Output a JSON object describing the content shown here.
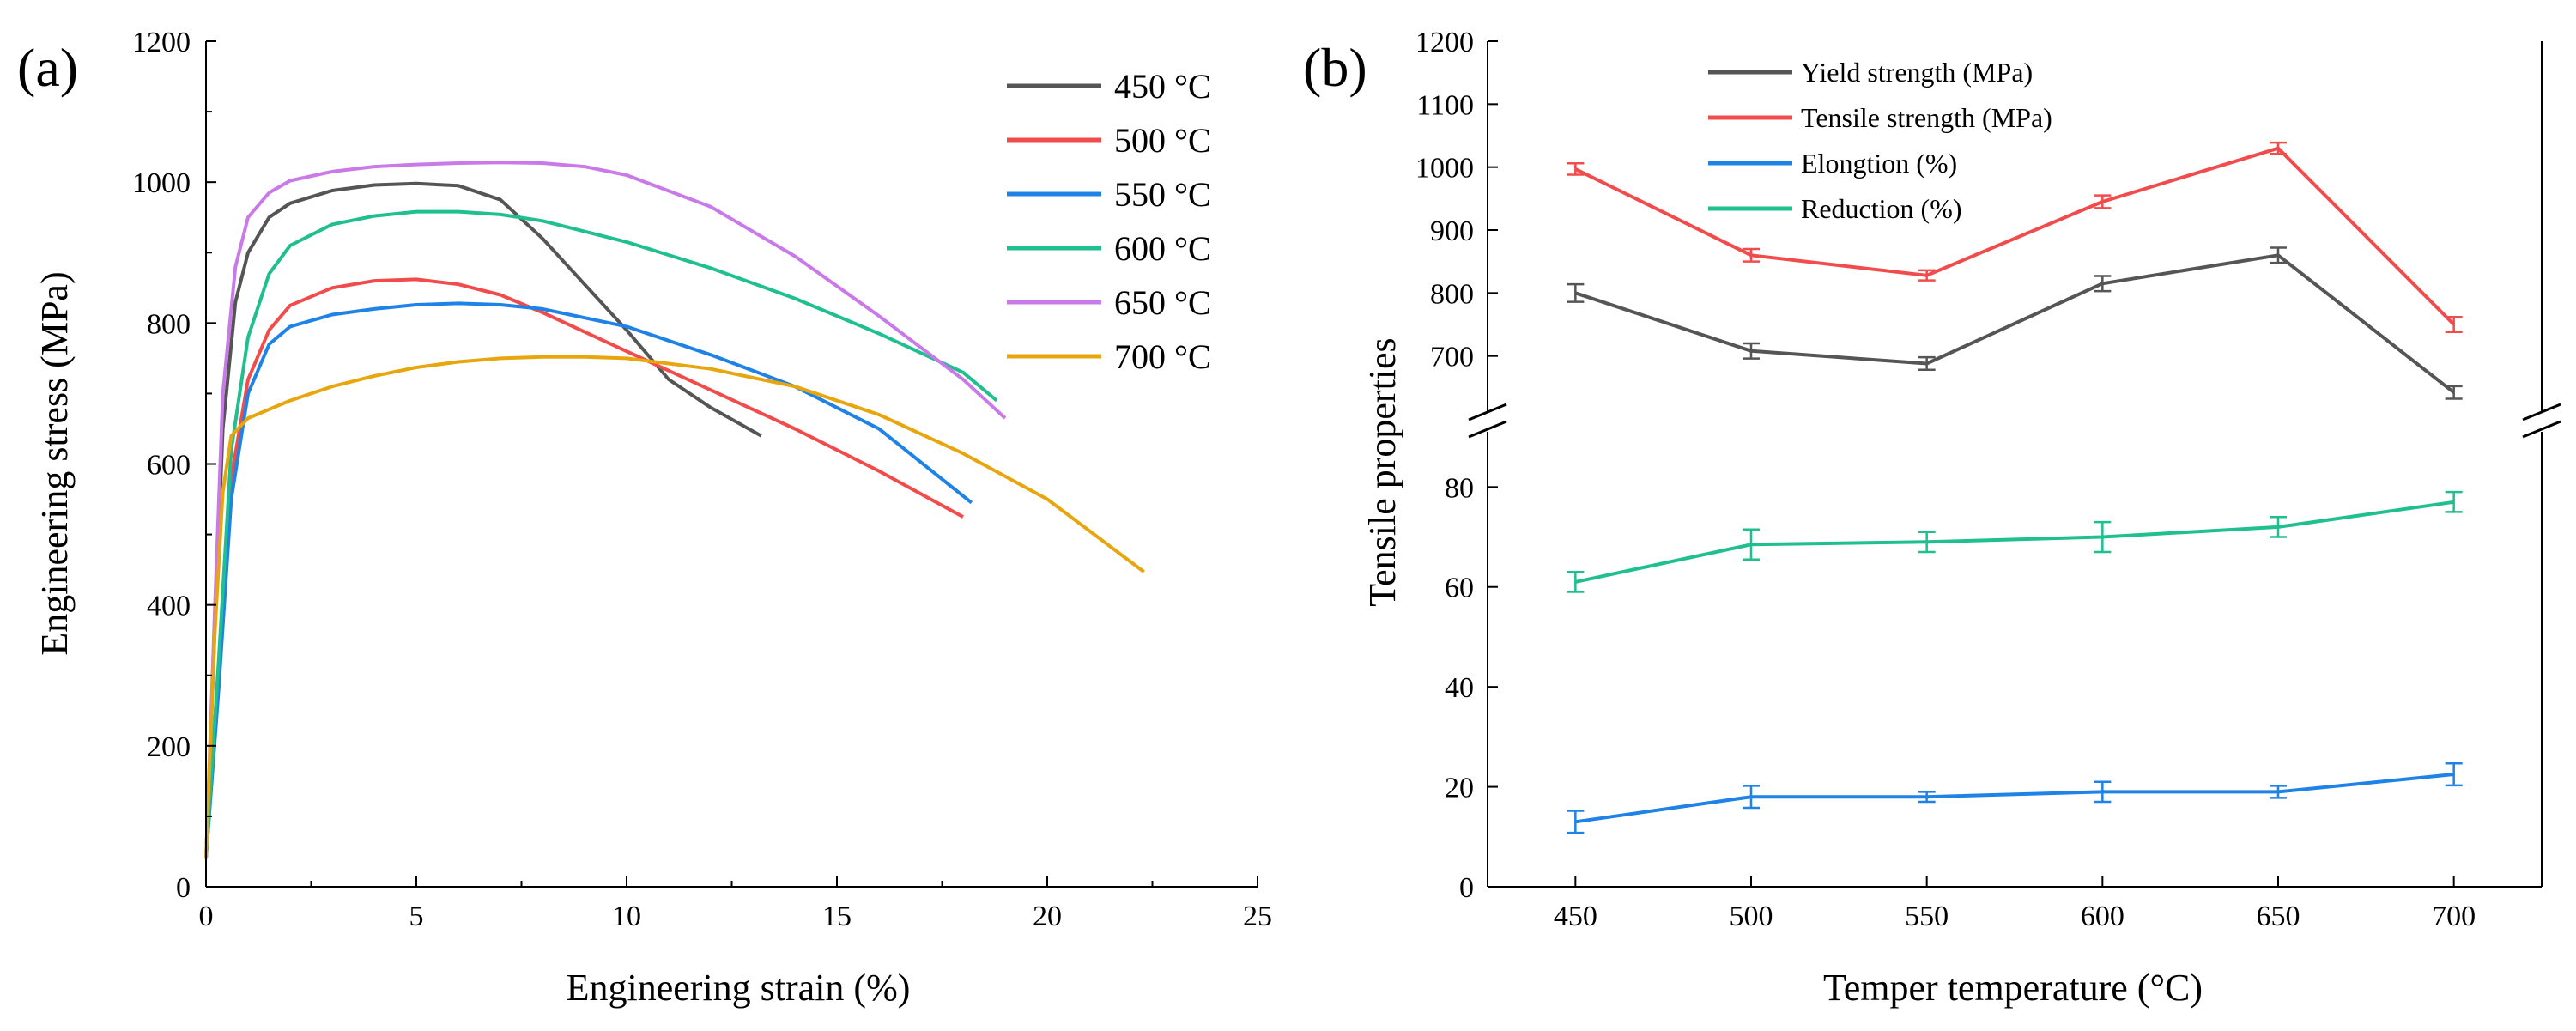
{
  "chart_data": [
    {
      "panel_label": "(a)",
      "type": "line",
      "title": "",
      "xlabel": "Engineering strain (%)",
      "ylabel": "Engineering stress (MPa)",
      "xlim": [
        0,
        25
      ],
      "ylim": [
        0,
        1200
      ],
      "x_ticks": [
        0,
        5,
        10,
        15,
        20,
        25
      ],
      "y_ticks": [
        0,
        200,
        400,
        600,
        800,
        1000,
        1200
      ],
      "grid": false,
      "legend_position": "top-right",
      "series": [
        {
          "name": "450 °C",
          "color": "#555555",
          "x": [
            0,
            0.2,
            0.4,
            0.7,
            1.0,
            1.5,
            2.0,
            3.0,
            4.0,
            5.0,
            6.0,
            7.0,
            8.0,
            9.0,
            10.0,
            11.0,
            12.0,
            13.2
          ],
          "y": [
            40,
            350,
            650,
            830,
            900,
            950,
            970,
            988,
            996,
            998,
            995,
            975,
            920,
            855,
            790,
            720,
            680,
            640
          ]
        },
        {
          "name": "500 °C",
          "color": "#f24b4b",
          "x": [
            0,
            0.3,
            0.6,
            1.0,
            1.5,
            2.0,
            3.0,
            4.0,
            5.0,
            6.0,
            7.0,
            8.0,
            10.0,
            12.0,
            14.0,
            16.0,
            18.0
          ],
          "y": [
            40,
            300,
            580,
            720,
            790,
            825,
            850,
            860,
            862,
            855,
            840,
            815,
            760,
            705,
            650,
            590,
            525
          ]
        },
        {
          "name": "550 °C",
          "color": "#1e82e6",
          "x": [
            0,
            0.3,
            0.6,
            1.0,
            1.5,
            2.0,
            3.0,
            4.0,
            5.0,
            6.0,
            7.0,
            8.0,
            10.0,
            12.0,
            14.0,
            16.0,
            18.2
          ],
          "y": [
            40,
            280,
            550,
            700,
            770,
            795,
            812,
            820,
            826,
            828,
            826,
            820,
            795,
            755,
            710,
            650,
            545
          ]
        },
        {
          "name": "600 °C",
          "color": "#1fbf8f",
          "x": [
            0,
            0.3,
            0.6,
            1.0,
            1.5,
            2.0,
            3.0,
            4.0,
            5.0,
            6.0,
            7.0,
            8.0,
            10.0,
            12.0,
            14.0,
            16.0,
            18.0,
            18.8
          ],
          "y": [
            40,
            320,
            620,
            780,
            870,
            910,
            940,
            952,
            958,
            958,
            954,
            945,
            915,
            878,
            835,
            785,
            730,
            690
          ]
        },
        {
          "name": "650 °C",
          "color": "#c97ae8",
          "x": [
            0,
            0.2,
            0.4,
            0.7,
            1.0,
            1.5,
            2.0,
            3.0,
            4.0,
            5.0,
            6.0,
            7.0,
            8.0,
            9.0,
            10.0,
            12.0,
            14.0,
            16.0,
            18.0,
            19.0
          ],
          "y": [
            40,
            380,
            700,
            880,
            950,
            985,
            1002,
            1015,
            1022,
            1025,
            1027,
            1028,
            1027,
            1022,
            1010,
            965,
            895,
            810,
            720,
            665
          ]
        },
        {
          "name": "700 °C",
          "color": "#e8a60e",
          "x": [
            0,
            0.2,
            0.4,
            0.6,
            1.0,
            2.0,
            3.0,
            4.0,
            5.0,
            6.0,
            7.0,
            8.0,
            9.0,
            10.0,
            12.0,
            14.0,
            16.0,
            18.0,
            20.0,
            22.3
          ],
          "y": [
            40,
            350,
            560,
            640,
            665,
            690,
            710,
            725,
            737,
            745,
            750,
            752,
            752,
            750,
            735,
            710,
            670,
            615,
            550,
            447
          ]
        }
      ]
    },
    {
      "panel_label": "(b)",
      "type": "line",
      "title": "",
      "xlabel": "Temper temperature (°C)",
      "ylabel": "Tensile properties",
      "categories": [
        450,
        500,
        550,
        600,
        650,
        700
      ],
      "x_tick_labels": [
        "450",
        "500",
        "550",
        "600",
        "650",
        "700"
      ],
      "y_break": true,
      "upper_ylim": [
        600,
        1200
      ],
      "upper_ticks": [
        700,
        800,
        900,
        1000,
        1100,
        1200
      ],
      "lower_ylim": [
        0,
        95
      ],
      "lower_ticks": [
        0,
        20,
        40,
        60,
        80
      ],
      "grid": false,
      "legend_position": "top-left",
      "series": [
        {
          "name": "Yield strength (MPa)",
          "color": "#555555",
          "axis": "upper",
          "values": [
            800,
            708,
            688,
            815,
            860,
            642
          ],
          "errors": [
            14,
            12,
            10,
            12,
            12,
            10
          ]
        },
        {
          "name": "Tensile strength (MPa)",
          "color": "#f24b4b",
          "axis": "upper",
          "values": [
            997,
            860,
            828,
            945,
            1030,
            750
          ],
          "errors": [
            9,
            10,
            8,
            10,
            9,
            12
          ]
        },
        {
          "name": "Elongtion (%)",
          "color": "#1e82e6",
          "axis": "lower",
          "values": [
            13,
            18,
            18,
            19,
            19,
            22.5
          ],
          "errors": [
            2.2,
            2.2,
            1.0,
            2.0,
            1.2,
            2.2
          ]
        },
        {
          "name": "Reduction (%)",
          "color": "#1fbf8f",
          "axis": "lower",
          "values": [
            61,
            68.5,
            69,
            70,
            72,
            77
          ],
          "errors": [
            2.0,
            3.0,
            2.0,
            3.0,
            2.0,
            2.0
          ]
        }
      ]
    }
  ]
}
